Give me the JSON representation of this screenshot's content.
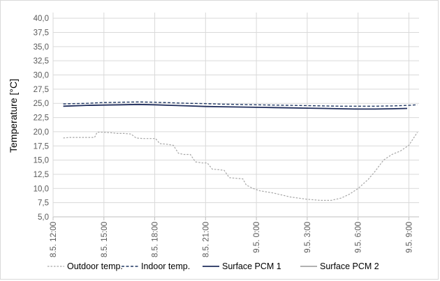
{
  "chart_data": {
    "type": "line",
    "ylabel": "Temperature [°C]",
    "xlabel": "",
    "ylim": [
      5.0,
      41.0
    ],
    "y_ticks": [
      "5,0",
      "7,5",
      "10,0",
      "12,5",
      "15,0",
      "17,5",
      "20,0",
      "22,5",
      "25,0",
      "27,5",
      "30,0",
      "32,5",
      "35,0",
      "37,5",
      "40,0"
    ],
    "y_tick_values": [
      5.0,
      7.5,
      10.0,
      12.5,
      15.0,
      17.5,
      20.0,
      22.5,
      25.0,
      27.5,
      30.0,
      32.5,
      35.0,
      37.5,
      40.0
    ],
    "x_unit": "hours since 8.5. 12:00",
    "xlim": [
      0,
      21.6
    ],
    "x_ticks": [
      "8.5. 12:00",
      "8.5. 15:00",
      "8.5. 18:00",
      "8.5. 21:00",
      "9.5. 0:00",
      "9.5. 3:00",
      "9.5. 6:00",
      "9.5. 9:00"
    ],
    "x_tick_values": [
      0,
      3,
      6,
      9,
      12,
      15,
      18,
      21
    ],
    "grid": true,
    "legend_position": "bottom",
    "series": [
      {
        "name": "Outdoor temp.",
        "color": "#a6a6a6",
        "dash": "dotted",
        "points": [
          [
            0.6,
            18.9
          ],
          [
            1.0,
            19.0
          ],
          [
            2.0,
            19.0
          ],
          [
            2.45,
            19.0
          ],
          [
            2.6,
            19.9
          ],
          [
            3.0,
            19.9
          ],
          [
            3.5,
            19.8
          ],
          [
            3.8,
            19.7
          ],
          [
            4.2,
            19.7
          ],
          [
            4.6,
            19.6
          ],
          [
            4.9,
            18.9
          ],
          [
            5.3,
            18.8
          ],
          [
            5.8,
            18.8
          ],
          [
            6.05,
            18.8
          ],
          [
            6.3,
            17.9
          ],
          [
            6.7,
            17.8
          ],
          [
            7.1,
            17.6
          ],
          [
            7.4,
            16.2
          ],
          [
            7.7,
            16.0
          ],
          [
            8.1,
            16.0
          ],
          [
            8.4,
            14.7
          ],
          [
            8.8,
            14.5
          ],
          [
            9.1,
            14.5
          ],
          [
            9.4,
            13.4
          ],
          [
            9.8,
            13.3
          ],
          [
            10.1,
            13.2
          ],
          [
            10.4,
            11.9
          ],
          [
            10.8,
            11.8
          ],
          [
            11.2,
            11.7
          ],
          [
            11.4,
            10.6
          ],
          [
            11.8,
            10.0
          ],
          [
            12.2,
            9.6
          ],
          [
            13.0,
            9.2
          ],
          [
            14.0,
            8.5
          ],
          [
            15.0,
            8.1
          ],
          [
            15.8,
            7.9
          ],
          [
            16.4,
            7.9
          ],
          [
            17.0,
            8.3
          ],
          [
            17.5,
            9.0
          ],
          [
            18.0,
            10.0
          ],
          [
            18.6,
            11.6
          ],
          [
            19.0,
            13.0
          ],
          [
            19.5,
            15.0
          ],
          [
            20.0,
            16.0
          ],
          [
            20.5,
            16.6
          ],
          [
            21.0,
            17.6
          ],
          [
            21.5,
            19.9
          ]
        ]
      },
      {
        "name": "Indoor temp.",
        "color": "#203864",
        "dash": "dashed",
        "points": [
          [
            0.6,
            24.9
          ],
          [
            2.0,
            25.0
          ],
          [
            3.0,
            25.15
          ],
          [
            4.0,
            25.2
          ],
          [
            5.0,
            25.25
          ],
          [
            6.0,
            25.2
          ],
          [
            7.0,
            25.1
          ],
          [
            8.0,
            25.0
          ],
          [
            9.0,
            24.95
          ],
          [
            10.0,
            24.85
          ],
          [
            11.0,
            24.8
          ],
          [
            12.0,
            24.75
          ],
          [
            13.0,
            24.7
          ],
          [
            14.0,
            24.65
          ],
          [
            15.0,
            24.6
          ],
          [
            16.0,
            24.55
          ],
          [
            17.0,
            24.5
          ],
          [
            18.0,
            24.5
          ],
          [
            19.0,
            24.5
          ],
          [
            20.0,
            24.55
          ],
          [
            21.0,
            24.65
          ],
          [
            21.5,
            24.75
          ]
        ]
      },
      {
        "name": "Surface PCM 1",
        "color": "#1f2d5c",
        "dash": "solid",
        "points": [
          [
            0.6,
            24.5
          ],
          [
            2.0,
            24.65
          ],
          [
            3.0,
            24.7
          ],
          [
            4.0,
            24.75
          ],
          [
            5.0,
            24.8
          ],
          [
            6.0,
            24.75
          ],
          [
            7.0,
            24.65
          ],
          [
            8.0,
            24.55
          ],
          [
            9.0,
            24.45
          ],
          [
            10.0,
            24.4
          ],
          [
            11.0,
            24.35
          ],
          [
            12.0,
            24.3
          ],
          [
            13.0,
            24.25
          ],
          [
            14.0,
            24.2
          ],
          [
            15.0,
            24.15
          ],
          [
            16.0,
            24.1
          ],
          [
            17.0,
            24.05
          ],
          [
            18.0,
            24.0
          ],
          [
            19.0,
            24.0
          ],
          [
            20.0,
            24.05
          ],
          [
            20.9,
            24.1
          ]
        ]
      },
      {
        "name": "Surface PCM 2",
        "color": "#a6a6a6",
        "dash": "solid",
        "points": []
      }
    ]
  }
}
